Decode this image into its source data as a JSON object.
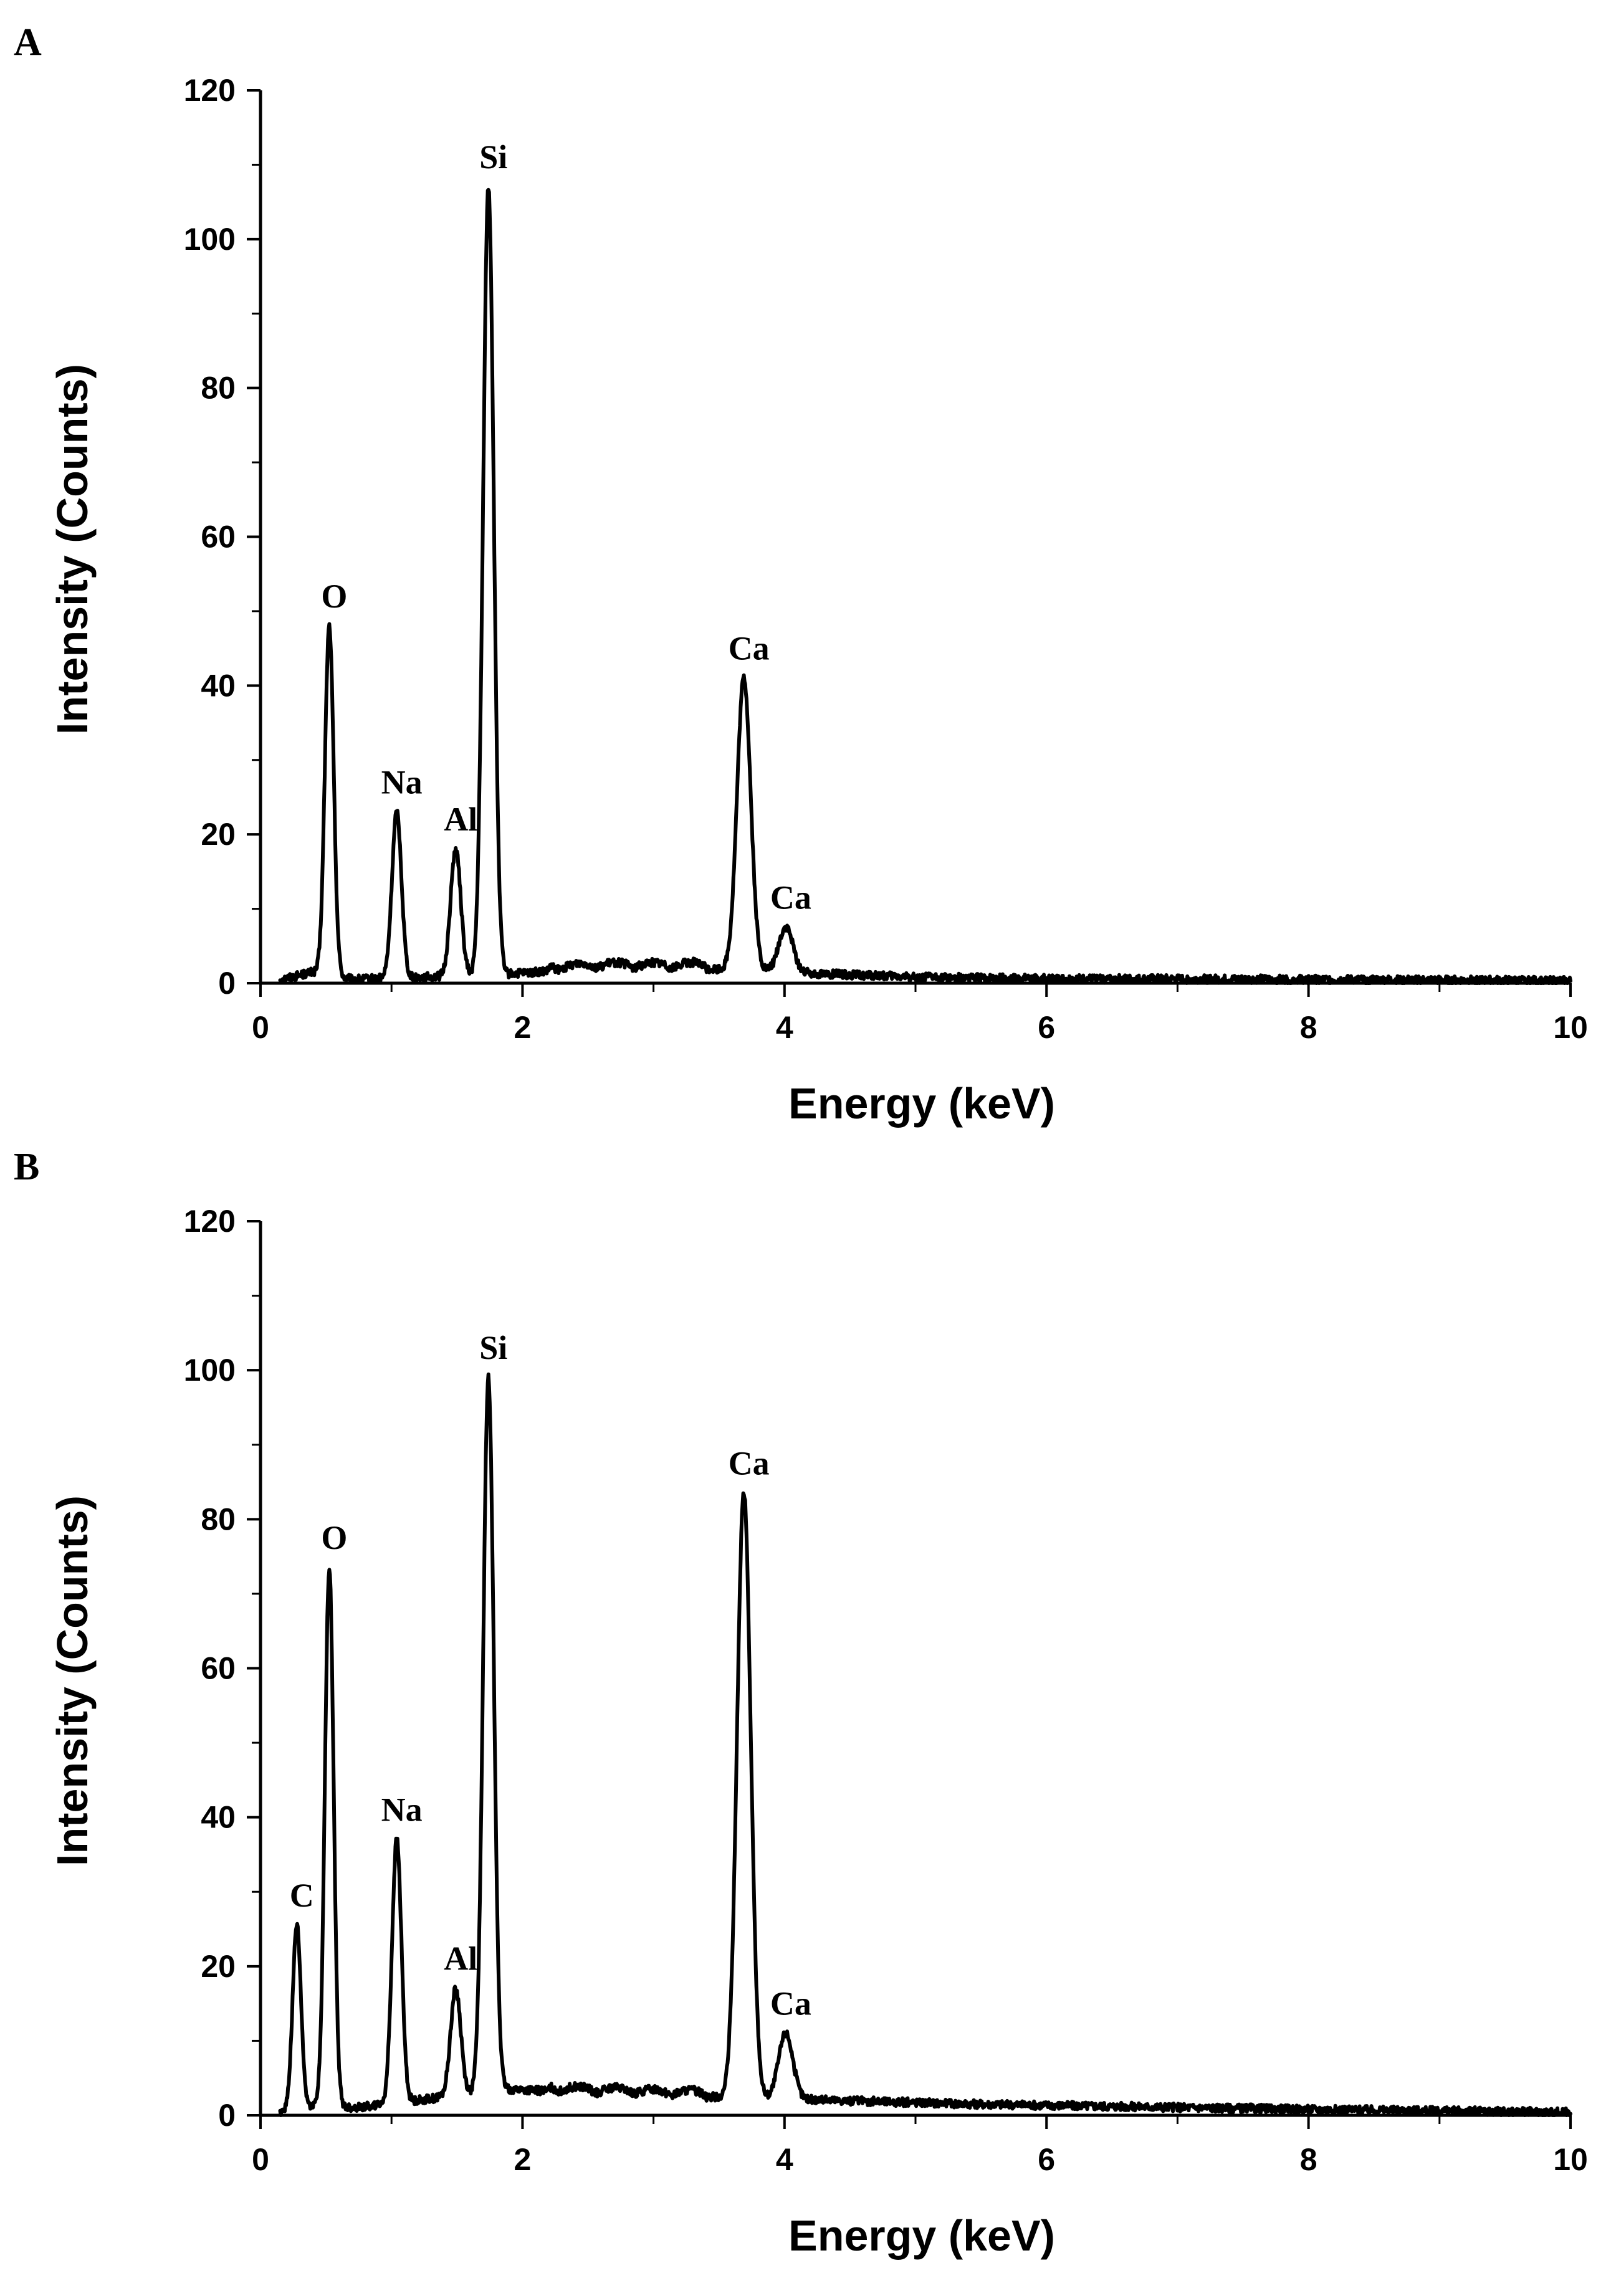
{
  "chart_data": [
    {
      "panel": "A",
      "type": "line",
      "title": "",
      "xlabel": "Energy (keV)",
      "ylabel": "Intensity (Counts)",
      "xlim": [
        0,
        10
      ],
      "ylim": [
        0,
        120
      ],
      "xticks": [
        0,
        2,
        4,
        6,
        8,
        10
      ],
      "yticks": [
        0,
        20,
        40,
        60,
        80,
        100,
        120
      ],
      "baseline": [
        [
          0.15,
          0.5
        ],
        [
          0.4,
          1.5
        ],
        [
          0.7,
          0.5
        ],
        [
          1.9,
          1.2
        ],
        [
          2.5,
          2.0
        ],
        [
          3.3,
          2.0
        ],
        [
          4.4,
          1.2
        ],
        [
          5.0,
          0.8
        ],
        [
          6.0,
          0.6
        ],
        [
          8.0,
          0.5
        ],
        [
          10.0,
          0.3
        ]
      ],
      "peaks": [
        {
          "label": "O",
          "energy": 0.525,
          "counts": 48
        },
        {
          "label": "Na",
          "energy": 1.04,
          "counts": 23
        },
        {
          "label": "Al",
          "energy": 1.49,
          "counts": 18
        },
        {
          "label": "Si",
          "energy": 1.74,
          "counts": 107
        },
        {
          "label": "Ca",
          "energy": 3.69,
          "counts": 41
        },
        {
          "label": "Ca",
          "energy": 4.01,
          "counts": 7.5
        }
      ]
    },
    {
      "panel": "B",
      "type": "line",
      "title": "",
      "xlabel": "Energy (keV)",
      "ylabel": "Intensity (Counts)",
      "xlim": [
        0,
        10
      ],
      "ylim": [
        0,
        120
      ],
      "xticks": [
        0,
        2,
        4,
        6,
        8,
        10
      ],
      "yticks": [
        0,
        20,
        40,
        60,
        80,
        100,
        120
      ],
      "baseline": [
        [
          0.15,
          0.5
        ],
        [
          0.45,
          1.5
        ],
        [
          0.7,
          1.0
        ],
        [
          1.9,
          3.5
        ],
        [
          2.5,
          3.0
        ],
        [
          3.4,
          2.5
        ],
        [
          4.4,
          2.0
        ],
        [
          5.5,
          1.5
        ],
        [
          6.5,
          1.2
        ],
        [
          8.0,
          0.8
        ],
        [
          10.0,
          0.4
        ]
      ],
      "peaks": [
        {
          "label": "C",
          "energy": 0.277,
          "counts": 25.5
        },
        {
          "label": "O",
          "energy": 0.525,
          "counts": 73.5
        },
        {
          "label": "Na",
          "energy": 1.04,
          "counts": 37
        },
        {
          "label": "Al",
          "energy": 1.49,
          "counts": 17
        },
        {
          "label": "Si",
          "energy": 1.74,
          "counts": 99
        },
        {
          "label": "Ca",
          "energy": 3.69,
          "counts": 83.5
        },
        {
          "label": "Ca",
          "energy": 4.01,
          "counts": 11
        }
      ]
    }
  ]
}
